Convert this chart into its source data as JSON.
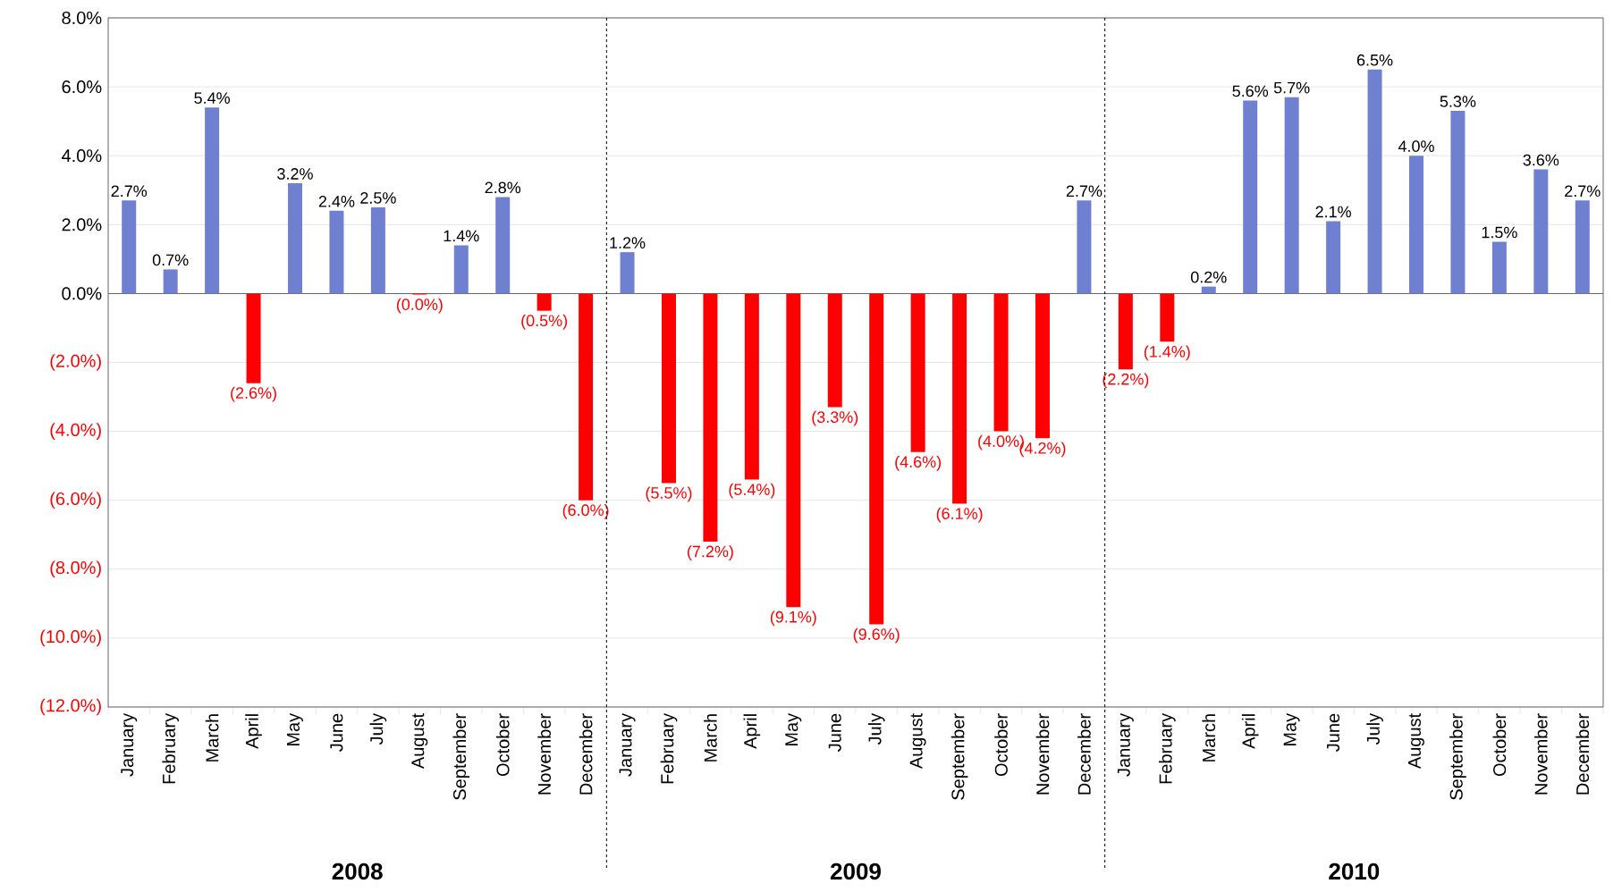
{
  "chart_data": {
    "type": "bar",
    "categories": [
      "January",
      "February",
      "March",
      "April",
      "May",
      "June",
      "July",
      "August",
      "September",
      "October",
      "November",
      "December",
      "January",
      "February",
      "March",
      "April",
      "May",
      "June",
      "July",
      "August",
      "September",
      "October",
      "November",
      "December",
      "January",
      "February",
      "March",
      "April",
      "May",
      "June",
      "July",
      "August",
      "September",
      "October",
      "November",
      "December"
    ],
    "values": [
      2.7,
      0.7,
      5.4,
      -2.6,
      3.2,
      2.4,
      2.5,
      -0.03,
      1.4,
      2.8,
      -0.5,
      -6.0,
      1.2,
      -5.5,
      -7.2,
      -5.4,
      -9.1,
      -3.3,
      -9.6,
      -4.6,
      -6.1,
      -4.0,
      -4.2,
      2.7,
      -2.2,
      -1.4,
      0.2,
      5.6,
      5.7,
      2.1,
      6.5,
      4.0,
      5.3,
      1.5,
      3.6,
      2.7
    ],
    "colors": [
      "#7080d0",
      "#7080d0",
      "#7080d0",
      "#ff0000",
      "#7080d0",
      "#7080d0",
      "#7080d0",
      "#ff0000",
      "#7080d0",
      "#7080d0",
      "#ff0000",
      "#ff0000",
      "#7080d0",
      "#ff0000",
      "#ff0000",
      "#ff0000",
      "#ff0000",
      "#ff0000",
      "#ff0000",
      "#ff0000",
      "#ff0000",
      "#ff0000",
      "#ff0000",
      "#7080d0",
      "#ff0000",
      "#ff0000",
      "#7080d0",
      "#7080d0",
      "#7080d0",
      "#7080d0",
      "#7080d0",
      "#7080d0",
      "#7080d0",
      "#7080d0",
      "#7080d0",
      "#7080d0"
    ],
    "value_labels": [
      "2.7%",
      "0.7%",
      "5.4%",
      "(2.6%)",
      "3.2%",
      "2.4%",
      "2.5%",
      "(0.0%)",
      "1.4%",
      "2.8%",
      "(0.5%)",
      "(6.0%)",
      "1.2%",
      "(5.5%)",
      "(7.2%)",
      "(5.4%)",
      "(9.1%)",
      "(3.3%)",
      "(9.6%)",
      "(4.6%)",
      "(6.1%)",
      "(4.0%)",
      "(4.2%)",
      "2.7%",
      "(2.2%)",
      "(1.4%)",
      "0.2%",
      "5.6%",
      "5.7%",
      "2.1%",
      "6.5%",
      "4.0%",
      "5.3%",
      "1.5%",
      "3.6%",
      "2.7%"
    ],
    "ylim": [
      -12,
      8
    ],
    "yticks": [
      {
        "value": -12,
        "label": "(12.0%)"
      },
      {
        "value": -10,
        "label": "(10.0%)"
      },
      {
        "value": -8,
        "label": "(8.0%)"
      },
      {
        "value": -6,
        "label": "(6.0%)"
      },
      {
        "value": -4,
        "label": "(4.0%)"
      },
      {
        "value": -2,
        "label": "(2.0%)"
      },
      {
        "value": 0,
        "label": "0.0%"
      },
      {
        "value": 2,
        "label": "2.0%"
      },
      {
        "value": 4,
        "label": "4.0%"
      },
      {
        "value": 6,
        "label": "6.0%"
      },
      {
        "value": 8,
        "label": "8.0%"
      }
    ],
    "grid": "y",
    "annotations": [
      "2008",
      "2009",
      "2010"
    ]
  }
}
